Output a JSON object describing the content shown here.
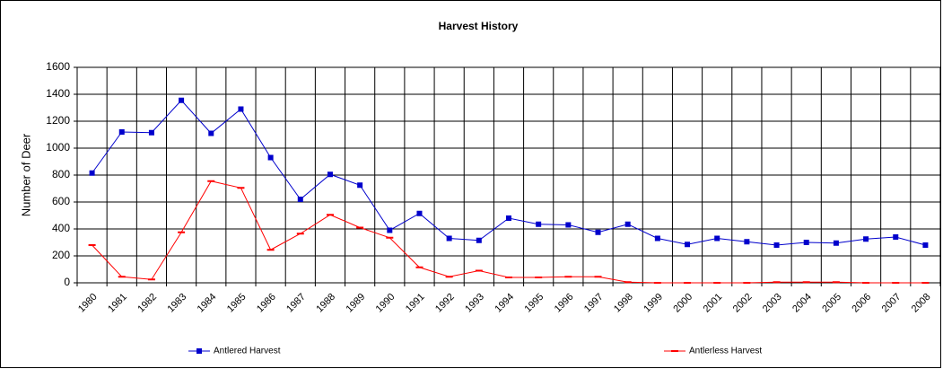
{
  "chart_data": {
    "type": "line",
    "title": "Harvest History",
    "y_label": "Number of Deer",
    "categories": [
      "1980",
      "1981",
      "1982",
      "1983",
      "1984",
      "1985",
      "1986",
      "1987",
      "1988",
      "1989",
      "1990",
      "1991",
      "1992",
      "1993",
      "1994",
      "1995",
      "1996",
      "1997",
      "1998",
      "1999",
      "2000",
      "2001",
      "2002",
      "2003",
      "2004",
      "2005",
      "2006",
      "2007",
      "2008"
    ],
    "series": [
      {
        "name": "Antlered Harvest",
        "color": "#0000cc",
        "marker": "square",
        "values": [
          815,
          1120,
          1115,
          1355,
          1110,
          1290,
          930,
          620,
          805,
          725,
          390,
          515,
          330,
          315,
          480,
          435,
          430,
          375,
          435,
          330,
          285,
          330,
          305,
          280,
          300,
          295,
          325,
          340,
          280
        ]
      },
      {
        "name": "Antlerless Harvest",
        "color": "#ff0000",
        "marker": "dash",
        "values": [
          280,
          45,
          25,
          375,
          755,
          705,
          245,
          365,
          505,
          410,
          335,
          115,
          45,
          90,
          40,
          40,
          45,
          45,
          5,
          0,
          0,
          0,
          0,
          5,
          5,
          5,
          0,
          0,
          0
        ]
      }
    ],
    "ylim": [
      0,
      1600
    ],
    "yticks": [
      0,
      200,
      400,
      600,
      800,
      1000,
      1200,
      1400,
      1600
    ],
    "grid": true,
    "legend": "bottom"
  }
}
